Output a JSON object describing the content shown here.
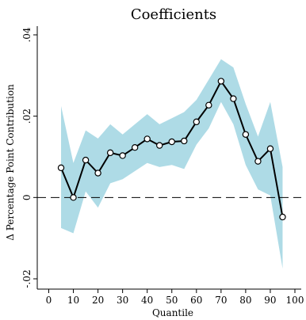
{
  "chart_data": {
    "type": "line",
    "title": "Coefficients",
    "xlabel": "Quantile",
    "ylabel": "Δ Percentage Point Contribution",
    "xlim": [
      0,
      100
    ],
    "ylim": [
      -0.02,
      0.04
    ],
    "x_ticks": [
      0,
      10,
      20,
      30,
      40,
      50,
      60,
      70,
      80,
      90,
      100
    ],
    "x_tick_labels": [
      "0",
      "10",
      "20",
      "30",
      "40",
      "50",
      "60",
      "70",
      "80",
      "90",
      "100"
    ],
    "y_ticks": [
      -0.02,
      0,
      0.02,
      0.04
    ],
    "y_tick_labels": [
      "-.02",
      "0",
      ".02",
      ".04"
    ],
    "x": [
      5,
      10,
      15,
      20,
      25,
      30,
      35,
      40,
      45,
      50,
      55,
      60,
      65,
      70,
      75,
      80,
      85,
      90,
      95
    ],
    "series": [
      {
        "values": [
          0.0073,
          0.0,
          0.0092,
          0.006,
          0.011,
          0.0103,
          0.0123,
          0.0144,
          0.0128,
          0.0137,
          0.0139,
          0.0186,
          0.0227,
          0.0286,
          0.0243,
          0.0155,
          0.0089,
          0.012,
          -0.0048
        ],
        "lower": [
          -0.0075,
          -0.0088,
          0.0015,
          -0.0025,
          0.0035,
          0.0045,
          0.0065,
          0.0085,
          0.0075,
          0.008,
          0.007,
          0.013,
          0.017,
          0.0235,
          0.018,
          0.008,
          0.002,
          0.0005,
          -0.0175
        ],
        "upper": [
          0.0225,
          0.0085,
          0.0165,
          0.0145,
          0.018,
          0.0155,
          0.018,
          0.0205,
          0.018,
          0.0195,
          0.021,
          0.024,
          0.029,
          0.034,
          0.032,
          0.023,
          0.015,
          0.0235,
          0.0075
        ]
      }
    ],
    "band_color": "#aedbe6",
    "line_color": "#000000",
    "marker_fill": "#ffffff",
    "reference_line": {
      "y": 0,
      "style": "dashed"
    },
    "grid": false,
    "legend": "none"
  }
}
